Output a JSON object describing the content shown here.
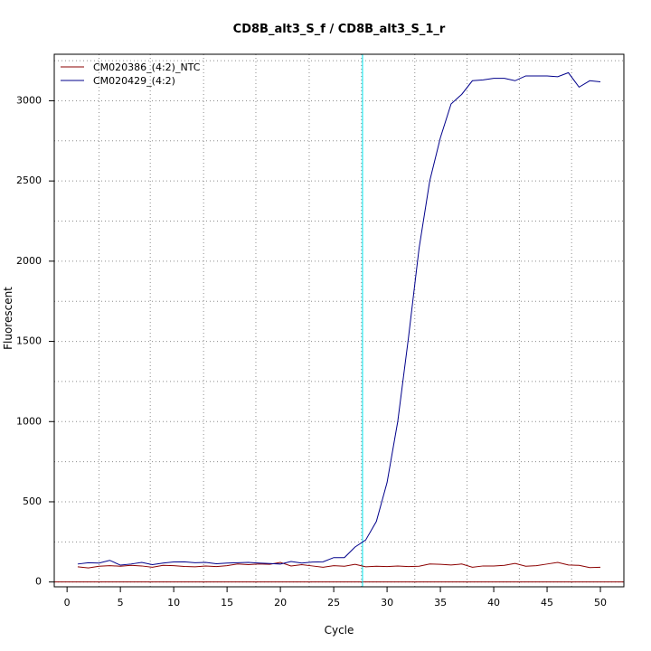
{
  "chart_data": {
    "type": "line",
    "title": "CD8B_alt3_S_f / CD8B_alt3_S_1_r",
    "xlabel": "Cycle",
    "ylabel": "Fluorescent",
    "xlim": [
      -1.2,
      52.2
    ],
    "ylim": [
      -30,
      3290
    ],
    "xticks": [
      0,
      5,
      10,
      15,
      20,
      25,
      30,
      35,
      40,
      45,
      50
    ],
    "yticks": [
      0,
      500,
      1000,
      1500,
      2000,
      2500,
      3000
    ],
    "x_minor_gridlines": [
      3,
      7.8,
      12.8,
      17.7,
      22.7,
      27.6,
      32.6,
      37.5,
      42.4,
      47.3
    ],
    "y_minor_gridlines": [
      250,
      750,
      1250,
      1750,
      2250,
      2750,
      3250
    ],
    "grid": true,
    "threshold_cycle": 27.7,
    "threshold_color": "#00e5ee",
    "baseline_value": 0,
    "baseline_color": "#8b0000",
    "legend_position": "top-left",
    "series": [
      {
        "name": "CM020386_(4:2)_NTC",
        "color": "#8b0000",
        "x": [
          1,
          2,
          3,
          4,
          5,
          6,
          7,
          8,
          9,
          10,
          11,
          12,
          13,
          14,
          15,
          16,
          17,
          18,
          19,
          20,
          21,
          22,
          23,
          24,
          25,
          26,
          27,
          28,
          29,
          30,
          31,
          32,
          33,
          34,
          35,
          36,
          37,
          38,
          39,
          40,
          41,
          42,
          43,
          44,
          45,
          46,
          47,
          48,
          49,
          50
        ],
        "values": [
          95,
          88,
          98,
          102,
          98,
          104,
          100,
          92,
          104,
          102,
          97,
          95,
          100,
          96,
          102,
          112,
          108,
          112,
          110,
          122,
          100,
          108,
          100,
          92,
          102,
          98,
          110,
          95,
          98,
          96,
          100,
          96,
          98,
          112,
          110,
          106,
          112,
          92,
          100,
          100,
          104,
          116,
          98,
          102,
          112,
          122,
          106,
          104,
          90,
          92
        ]
      },
      {
        "name": "CM020429_(4:2)",
        "color": "#00008b",
        "x": [
          1,
          2,
          3,
          4,
          5,
          6,
          7,
          8,
          9,
          10,
          11,
          12,
          13,
          14,
          15,
          16,
          17,
          18,
          19,
          20,
          21,
          22,
          23,
          24,
          25,
          26,
          27,
          28,
          29,
          30,
          31,
          32,
          33,
          34,
          35,
          36,
          37,
          38,
          39,
          40,
          41,
          42,
          43,
          44,
          45,
          46,
          47,
          48,
          49,
          50
        ],
        "values": [
          112,
          120,
          118,
          135,
          105,
          112,
          122,
          108,
          118,
          125,
          126,
          120,
          122,
          114,
          118,
          120,
          122,
          118,
          115,
          112,
          128,
          118,
          124,
          126,
          152,
          152,
          218,
          262,
          378,
          620,
          1000,
          1520,
          2080,
          2500,
          2770,
          2980,
          3040,
          3125,
          3130,
          3140,
          3140,
          3125,
          3155,
          3155,
          3155,
          3150,
          3175,
          3085,
          3125,
          3118
        ]
      }
    ]
  }
}
